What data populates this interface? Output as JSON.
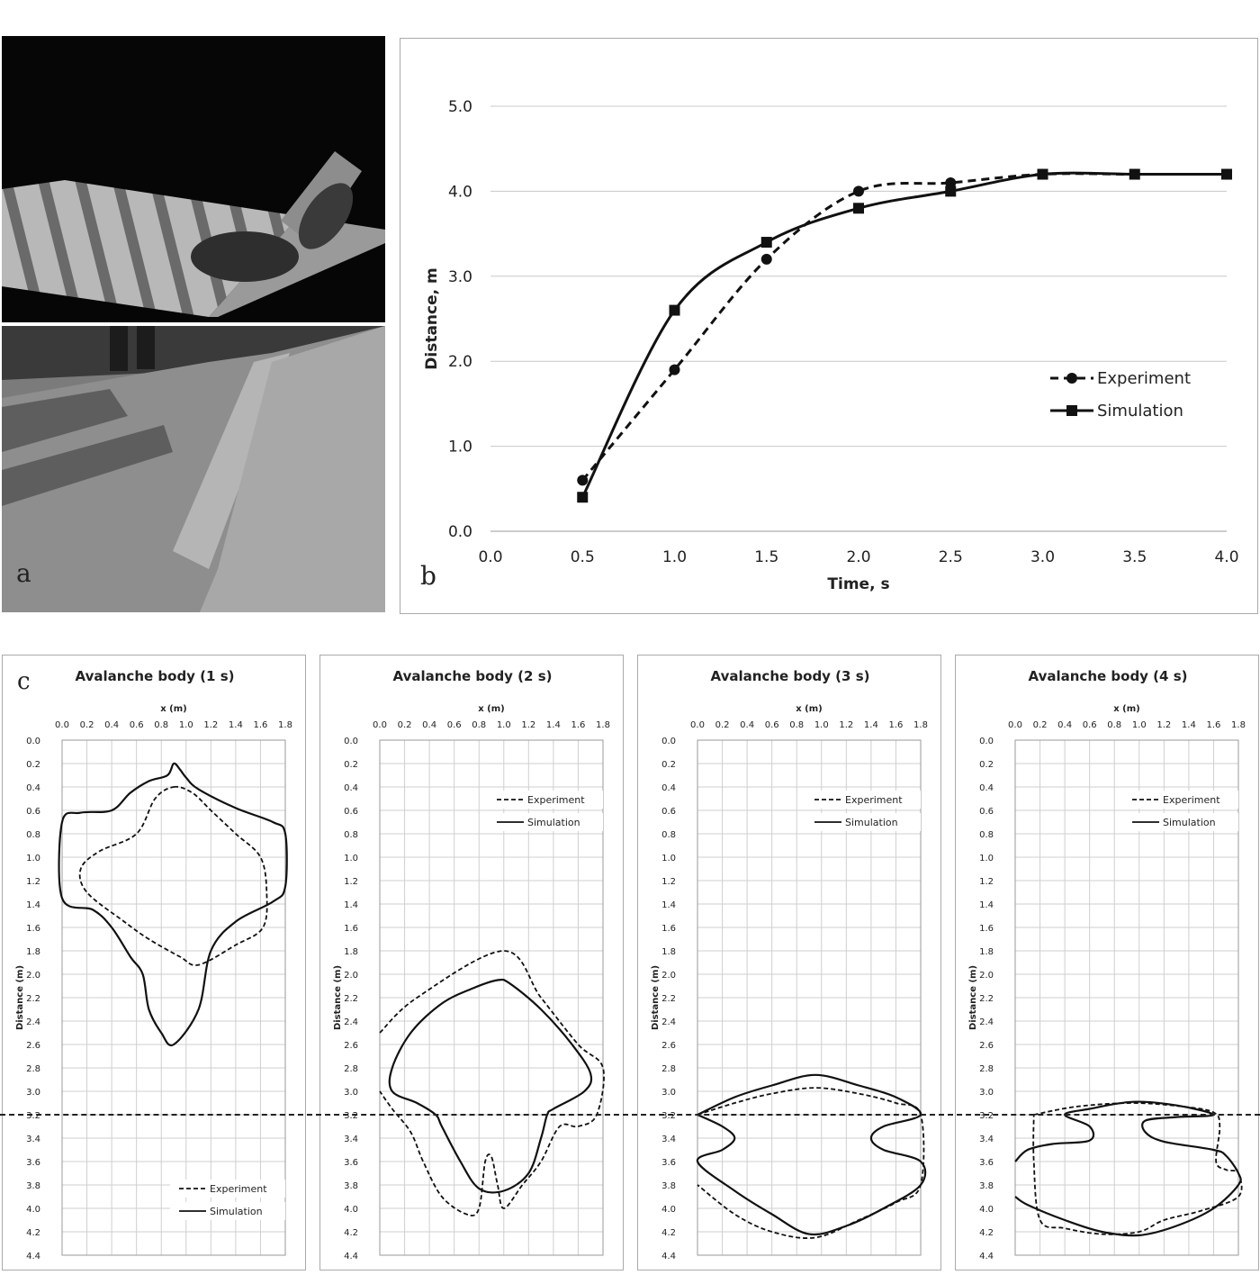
{
  "panel_labels": {
    "a": "a",
    "b": "b",
    "c": "c"
  },
  "chart_data": [
    {
      "type": "line",
      "panel": "b",
      "xlabel": "Time, s",
      "ylabel": "Distance, m",
      "xlim": [
        0.0,
        4.0
      ],
      "ylim": [
        0.0,
        5.0
      ],
      "x_ticks": [
        "0.0",
        "0.5",
        "1.0",
        "1.5",
        "2.0",
        "2.5",
        "3.0",
        "3.5",
        "4.0"
      ],
      "y_ticks": [
        "0.0",
        "1.0",
        "2.0",
        "3.0",
        "4.0",
        "5.0"
      ],
      "grid": "horizontal",
      "legend_position": "right",
      "series": [
        {
          "name": "Experiment",
          "style": "dashed",
          "marker": "circle",
          "x": [
            0.5,
            1.0,
            1.5,
            2.0,
            2.5,
            3.0,
            3.5,
            4.0
          ],
          "y": [
            0.6,
            1.9,
            3.2,
            4.0,
            4.1,
            4.2,
            4.2,
            4.2
          ]
        },
        {
          "name": "Simulation",
          "style": "solid",
          "marker": "square",
          "x": [
            0.5,
            1.0,
            1.5,
            2.0,
            2.5,
            3.0,
            3.5,
            4.0
          ],
          "y": [
            0.4,
            2.6,
            3.4,
            3.8,
            4.0,
            4.2,
            4.2,
            4.2
          ]
        }
      ]
    },
    {
      "type": "line",
      "panel": "c",
      "title": "Avalanche body (1 s)",
      "xlabel": "x (m)",
      "ylabel": "Distance (m)",
      "xlim": [
        0.0,
        1.8
      ],
      "ylim": [
        0.0,
        4.4
      ],
      "y_inverted": true,
      "legend_position": "bottom-right",
      "series": [
        {
          "name": "Experiment",
          "style": "dashed",
          "closed": true,
          "points": [
            [
              0.9,
              0.4
            ],
            [
              1.05,
              0.45
            ],
            [
              1.2,
              0.6
            ],
            [
              1.4,
              0.8
            ],
            [
              1.6,
              1.0
            ],
            [
              1.65,
              1.3
            ],
            [
              1.62,
              1.6
            ],
            [
              1.4,
              1.75
            ],
            [
              1.1,
              1.92
            ],
            [
              0.95,
              1.85
            ],
            [
              0.7,
              1.7
            ],
            [
              0.5,
              1.55
            ],
            [
              0.2,
              1.3
            ],
            [
              0.15,
              1.1
            ],
            [
              0.3,
              0.95
            ],
            [
              0.6,
              0.8
            ],
            [
              0.75,
              0.5
            ]
          ]
        },
        {
          "name": "Simulation",
          "style": "solid",
          "closed": true,
          "points": [
            [
              0.9,
              0.2
            ],
            [
              0.95,
              0.25
            ],
            [
              1.0,
              0.32
            ],
            [
              1.1,
              0.42
            ],
            [
              1.4,
              0.58
            ],
            [
              1.7,
              0.7
            ],
            [
              1.8,
              0.8
            ],
            [
              1.8,
              1.25
            ],
            [
              1.7,
              1.38
            ],
            [
              1.4,
              1.55
            ],
            [
              1.2,
              1.8
            ],
            [
              1.1,
              2.3
            ],
            [
              0.9,
              2.6
            ],
            [
              0.8,
              2.5
            ],
            [
              0.7,
              2.3
            ],
            [
              0.65,
              2.0
            ],
            [
              0.55,
              1.85
            ],
            [
              0.4,
              1.6
            ],
            [
              0.25,
              1.45
            ],
            [
              0.0,
              1.35
            ],
            [
              0.0,
              0.7
            ],
            [
              0.15,
              0.62
            ],
            [
              0.4,
              0.6
            ],
            [
              0.55,
              0.45
            ],
            [
              0.7,
              0.35
            ],
            [
              0.85,
              0.3
            ]
          ]
        }
      ]
    },
    {
      "type": "line",
      "panel": "c",
      "title": "Avalanche body (2 s)",
      "xlabel": "x (m)",
      "ylabel": "Distance (m)",
      "xlim": [
        0.0,
        1.8
      ],
      "ylim": [
        0.0,
        4.4
      ],
      "y_inverted": true,
      "legend_position": "top-right",
      "series": [
        {
          "name": "Experiment",
          "style": "dashed",
          "closed": false,
          "points": [
            [
              0.0,
              2.5
            ],
            [
              0.3,
              2.2
            ],
            [
              1.0,
              1.8
            ],
            [
              1.3,
              2.2
            ],
            [
              1.6,
              2.6
            ],
            [
              1.8,
              2.8
            ],
            [
              1.75,
              3.2
            ],
            [
              1.6,
              3.3
            ],
            [
              1.45,
              3.3
            ],
            [
              1.3,
              3.6
            ],
            [
              1.15,
              3.8
            ],
            [
              1.0,
              4.0
            ],
            [
              0.95,
              3.8
            ],
            [
              0.9,
              3.56
            ],
            [
              0.85,
              3.6
            ],
            [
              0.8,
              4.0
            ],
            [
              0.7,
              4.05
            ],
            [
              0.5,
              3.9
            ],
            [
              0.35,
              3.6
            ],
            [
              0.25,
              3.35
            ],
            [
              0.1,
              3.15
            ],
            [
              0.0,
              3.0
            ]
          ]
        },
        {
          "name": "Simulation",
          "style": "solid",
          "closed": true,
          "points": [
            [
              0.95,
              2.05
            ],
            [
              1.05,
              2.08
            ],
            [
              1.3,
              2.3
            ],
            [
              1.55,
              2.6
            ],
            [
              1.7,
              2.85
            ],
            [
              1.65,
              3.0
            ],
            [
              1.4,
              3.15
            ],
            [
              1.35,
              3.2
            ],
            [
              1.3,
              3.4
            ],
            [
              1.2,
              3.7
            ],
            [
              1.0,
              3.85
            ],
            [
              0.8,
              3.83
            ],
            [
              0.65,
              3.6
            ],
            [
              0.5,
              3.3
            ],
            [
              0.45,
              3.2
            ],
            [
              0.3,
              3.1
            ],
            [
              0.1,
              3.0
            ],
            [
              0.1,
              2.8
            ],
            [
              0.25,
              2.5
            ],
            [
              0.5,
              2.25
            ],
            [
              0.75,
              2.12
            ]
          ]
        }
      ]
    },
    {
      "type": "line",
      "panel": "c",
      "title": "Avalanche body (3 s)",
      "xlabel": "x (m)",
      "ylabel": "Distance (m)",
      "xlim": [
        0.0,
        1.8
      ],
      "ylim": [
        0.0,
        4.4
      ],
      "y_inverted": true,
      "legend_position": "top-right",
      "series": [
        {
          "name": "Experiment",
          "style": "dashed",
          "closed": false,
          "points": [
            [
              0.0,
              3.2
            ],
            [
              0.3,
              3.1
            ],
            [
              0.6,
              3.02
            ],
            [
              0.95,
              2.97
            ],
            [
              1.3,
              3.02
            ],
            [
              1.6,
              3.1
            ],
            [
              1.8,
              3.2
            ],
            [
              1.8,
              3.8
            ],
            [
              1.6,
              3.95
            ],
            [
              1.3,
              4.1
            ],
            [
              0.95,
              4.25
            ],
            [
              0.6,
              4.2
            ],
            [
              0.3,
              4.05
            ],
            [
              0.0,
              3.8
            ]
          ]
        },
        {
          "name": "Simulation",
          "style": "solid",
          "closed": false,
          "points": [
            [
              0.0,
              3.2
            ],
            [
              0.3,
              3.05
            ],
            [
              0.6,
              2.95
            ],
            [
              0.95,
              2.86
            ],
            [
              1.3,
              2.95
            ],
            [
              1.6,
              3.05
            ],
            [
              1.8,
              3.2
            ],
            [
              1.5,
              3.3
            ],
            [
              1.4,
              3.4
            ],
            [
              1.5,
              3.5
            ],
            [
              1.8,
              3.6
            ],
            [
              1.8,
              3.8
            ],
            [
              1.5,
              4.0
            ],
            [
              1.2,
              4.15
            ],
            [
              0.9,
              4.22
            ],
            [
              0.6,
              4.05
            ],
            [
              0.3,
              3.85
            ],
            [
              0.0,
              3.6
            ],
            [
              0.2,
              3.5
            ],
            [
              0.3,
              3.4
            ],
            [
              0.2,
              3.3
            ],
            [
              0.0,
              3.2
            ]
          ]
        }
      ]
    },
    {
      "type": "line",
      "panel": "c",
      "title": "Avalanche body (4 s)",
      "xlabel": "x (m)",
      "ylabel": "Distance (m)",
      "xlim": [
        0.0,
        1.8
      ],
      "ylim": [
        0.0,
        4.4
      ],
      "y_inverted": true,
      "legend_position": "top-right",
      "series": [
        {
          "name": "Experiment",
          "style": "dashed",
          "closed": false,
          "points": [
            [
              0.15,
              3.2
            ],
            [
              0.5,
              3.13
            ],
            [
              0.95,
              3.1
            ],
            [
              1.35,
              3.13
            ],
            [
              1.6,
              3.18
            ],
            [
              1.65,
              3.3
            ],
            [
              1.62,
              3.6
            ],
            [
              1.7,
              3.67
            ],
            [
              1.8,
              3.7
            ],
            [
              1.8,
              3.9
            ],
            [
              1.5,
              4.02
            ],
            [
              1.2,
              4.1
            ],
            [
              1.0,
              4.2
            ],
            [
              0.7,
              4.22
            ],
            [
              0.4,
              4.17
            ],
            [
              0.2,
              4.1
            ],
            [
              0.15,
              3.6
            ],
            [
              0.15,
              3.2
            ]
          ]
        },
        {
          "name": "Simulation",
          "style": "solid",
          "closed": false,
          "points": [
            [
              0.0,
              3.6
            ],
            [
              0.1,
              3.5
            ],
            [
              0.3,
              3.45
            ],
            [
              0.6,
              3.42
            ],
            [
              0.6,
              3.3
            ],
            [
              0.4,
              3.2
            ],
            [
              0.6,
              3.15
            ],
            [
              0.95,
              3.09
            ],
            [
              1.3,
              3.12
            ],
            [
              1.6,
              3.2
            ],
            [
              1.3,
              3.22
            ],
            [
              1.05,
              3.25
            ],
            [
              1.05,
              3.35
            ],
            [
              1.2,
              3.43
            ],
            [
              1.6,
              3.5
            ],
            [
              1.7,
              3.55
            ],
            [
              1.8,
              3.7
            ],
            [
              1.8,
              3.8
            ],
            [
              1.6,
              4.0
            ],
            [
              1.3,
              4.15
            ],
            [
              1.0,
              4.23
            ],
            [
              0.7,
              4.2
            ],
            [
              0.4,
              4.1
            ],
            [
              0.1,
              3.97
            ],
            [
              0.0,
              3.9
            ]
          ]
        }
      ]
    }
  ]
}
